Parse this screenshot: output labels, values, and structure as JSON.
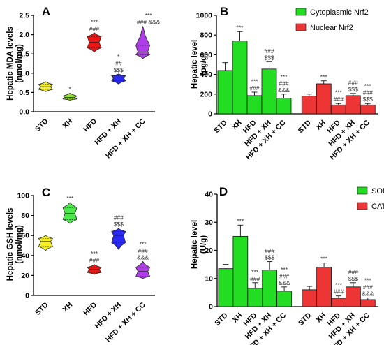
{
  "chart_data": [
    {
      "panel": "A",
      "type": "violin",
      "ylabel": "Hepatic MDA levels\n(nmol/mg)",
      "ylim": [
        0.0,
        2.5
      ],
      "yticks": [
        "0.0",
        "0.5",
        "1.0",
        "1.5",
        "2.0",
        "2.5"
      ],
      "categories": [
        "STD",
        "XH",
        "HFD",
        "HFD + XH",
        "HFD + XH + CC"
      ],
      "colors": [
        "#f5f01e",
        "#9be03a",
        "#ee1515",
        "#2a2af0",
        "#b03ee8"
      ],
      "stats": [
        {
          "min": 0.52,
          "q1": 0.58,
          "median": 0.65,
          "q3": 0.71,
          "max": 0.78
        },
        {
          "min": 0.3,
          "q1": 0.33,
          "median": 0.37,
          "q3": 0.41,
          "max": 0.48
        },
        {
          "min": 1.55,
          "q1": 1.66,
          "median": 1.8,
          "q3": 1.95,
          "max": 2.05
        },
        {
          "min": 0.72,
          "q1": 0.8,
          "median": 0.88,
          "q3": 0.93,
          "max": 0.98
        },
        {
          "min": 1.38,
          "q1": 1.48,
          "median": 1.55,
          "q3": 1.72,
          "max": 2.22
        }
      ],
      "annotations": [
        [],
        [
          "*"
        ],
        [
          "***",
          "###"
        ],
        [
          "*",
          "##",
          "$$$"
        ],
        [
          "***",
          "### &&&"
        ]
      ]
    },
    {
      "panel": "B",
      "type": "bar",
      "ylabel": "Hepatic level\n(pg/g)",
      "ylim": [
        0,
        1000
      ],
      "yticks": [
        "0",
        "200",
        "400",
        "600",
        "800",
        "1000"
      ],
      "categories": [
        "STD",
        "XH",
        "HFD",
        "HFD + XH",
        "HFD + XH + CC"
      ],
      "series": [
        {
          "name": "Cytoplasmic Nrf2",
          "color": "#22dd22",
          "values": [
            440,
            740,
            185,
            455,
            160
          ],
          "errors": [
            80,
            95,
            35,
            75,
            40
          ],
          "annotations": [
            [],
            [
              "***"
            ],
            [
              "***",
              "###"
            ],
            [
              "###",
              "$$$"
            ],
            [
              "***",
              "###",
              "&&&"
            ]
          ]
        },
        {
          "name": "Nuclear Nrf2",
          "color": "#ee3535",
          "values": [
            180,
            305,
            90,
            185,
            90
          ],
          "errors": [
            20,
            30,
            15,
            22,
            15
          ],
          "annotations": [
            [],
            [
              "***"
            ],
            [
              "***",
              "###"
            ],
            [
              "###",
              "$$$"
            ],
            [
              "***",
              "###",
              "$$$"
            ]
          ]
        }
      ],
      "legend_position": "top-right"
    },
    {
      "panel": "C",
      "type": "violin",
      "ylabel": "Hepatic GSH levels\n(nmol/mg)",
      "ylim": [
        0,
        100
      ],
      "yticks": [
        "0",
        "20",
        "40",
        "60",
        "80",
        "100"
      ],
      "categories": [
        "STD",
        "XH",
        "HFD",
        "HFD + XH",
        "HFD + XH + CC"
      ],
      "colors": [
        "#f5f01e",
        "#4ee84e",
        "#ee1515",
        "#2a2af0",
        "#b03ee8"
      ],
      "stats": [
        {
          "min": 45,
          "q1": 49,
          "median": 54,
          "q3": 57,
          "max": 60
        },
        {
          "min": 72,
          "q1": 76,
          "median": 82,
          "q3": 88,
          "max": 93
        },
        {
          "min": 21,
          "q1": 23,
          "median": 26,
          "q3": 28,
          "max": 31
        },
        {
          "min": 46,
          "q1": 53,
          "median": 60,
          "q3": 64,
          "max": 67
        },
        {
          "min": 17,
          "q1": 19,
          "median": 24,
          "q3": 28,
          "max": 34
        }
      ],
      "annotations": [
        [],
        [
          "***"
        ],
        [
          "***",
          "###"
        ],
        [
          "###",
          "$$$"
        ],
        [
          "***",
          "###",
          "&&&"
        ]
      ]
    },
    {
      "panel": "D",
      "type": "bar",
      "ylabel": "Hepatic level\n(U/g)",
      "ylim": [
        0,
        40
      ],
      "yticks": [
        "0",
        "10",
        "20",
        "30",
        "40"
      ],
      "categories": [
        "STD",
        "XH",
        "HFD",
        "HFD + XH",
        "HFD + XH + CC"
      ],
      "series": [
        {
          "name": "SOD",
          "color": "#22dd22",
          "values": [
            13.5,
            25,
            6.5,
            13,
            5.5
          ],
          "errors": [
            1.5,
            4,
            2,
            3,
            1.5
          ],
          "annotations": [
            [],
            [
              "***"
            ],
            [
              "***",
              "###"
            ],
            [
              "###",
              "$$$"
            ],
            [
              "***",
              "###",
              "&&&"
            ]
          ]
        },
        {
          "name": "CAT",
          "color": "#ee3535",
          "values": [
            6,
            14,
            3,
            7,
            2.5
          ],
          "errors": [
            1.2,
            1.5,
            0.8,
            1.5,
            0.6
          ],
          "annotations": [
            [],
            [
              "***"
            ],
            [
              "***",
              "###"
            ],
            [
              "###",
              "$$$"
            ],
            [
              "***",
              "###",
              "&&&"
            ]
          ]
        }
      ],
      "legend_position": "top-right"
    }
  ]
}
